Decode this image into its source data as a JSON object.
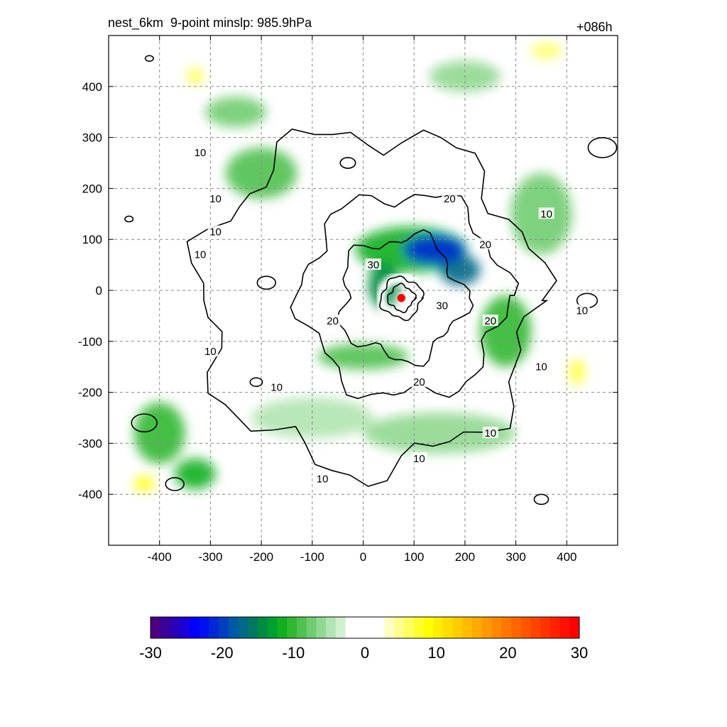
{
  "title_left": "nest_6km  9-point minslp: 985.9hPa",
  "title_right": "+086h",
  "colors": {
    "contour_line": "#000000",
    "center_marker": "#ff0000",
    "grid": "#888888"
  },
  "chart_data": {
    "type": "heatmap",
    "title": "nest_6km  9-point minslp: 985.9hPa",
    "subtitle": "+086h",
    "x_ticks": [
      "-400",
      "-300",
      "-200",
      "-100",
      "0",
      "100",
      "200",
      "300",
      "400"
    ],
    "y_ticks": [
      "400",
      "300",
      "200",
      "100",
      "0",
      "-100",
      "-200",
      "-300",
      "-400"
    ],
    "xlim": [
      -500,
      500
    ],
    "ylim": [
      -500,
      500
    ],
    "grid": true,
    "colorbar": {
      "min": -30,
      "max": 30,
      "tick_labels": [
        "-30",
        "-20",
        "-10",
        "0",
        "10",
        "20",
        "30"
      ],
      "colors": [
        "#4b0082",
        "#3a009a",
        "#2a00b8",
        "#1a00d6",
        "#0000ff",
        "#0010f0",
        "#0028d8",
        "#0040c0",
        "#0058a8",
        "#006888",
        "#007860",
        "#008c40",
        "#00a030",
        "#10b020",
        "#30b830",
        "#50c050",
        "#70cc70",
        "#90d890",
        "#b0e4b0",
        "#d0f0d0",
        "#ffffff",
        "#ffffff",
        "#ffffff",
        "#ffffff",
        "#ffffc0",
        "#ffff90",
        "#ffff60",
        "#ffff30",
        "#ffff00",
        "#ffee00",
        "#ffdd00",
        "#ffcc00",
        "#ffbb00",
        "#ffaa00",
        "#ff9900",
        "#ff8800",
        "#ff7700",
        "#ff6600",
        "#ff5500",
        "#ff4400",
        "#ff3300",
        "#ff2200",
        "#ff1100",
        "#ff0000"
      ]
    },
    "field_features": [
      {
        "x": 140,
        "y": 80,
        "rx": 60,
        "ry": 28,
        "value": -22
      },
      {
        "x": 190,
        "y": 40,
        "rx": 40,
        "ry": 30,
        "value": -18
      },
      {
        "x": 40,
        "y": 10,
        "rx": 30,
        "ry": 45,
        "value": -14
      },
      {
        "x": 95,
        "y": 80,
        "rx": 110,
        "ry": 45,
        "value": -12
      },
      {
        "x": 280,
        "y": -80,
        "rx": 50,
        "ry": 70,
        "value": -10
      },
      {
        "x": -200,
        "y": 230,
        "rx": 70,
        "ry": 50,
        "value": -9
      },
      {
        "x": -250,
        "y": 350,
        "rx": 60,
        "ry": 30,
        "value": -8
      },
      {
        "x": 0,
        "y": -130,
        "rx": 90,
        "ry": 25,
        "value": -9
      },
      {
        "x": -400,
        "y": -280,
        "rx": 50,
        "ry": 60,
        "value": -10
      },
      {
        "x": -330,
        "y": -360,
        "rx": 40,
        "ry": 30,
        "value": -12
      },
      {
        "x": 350,
        "y": 150,
        "rx": 60,
        "ry": 80,
        "value": -7
      },
      {
        "x": -100,
        "y": -250,
        "rx": 120,
        "ry": 40,
        "value": -5
      },
      {
        "x": 150,
        "y": -280,
        "rx": 150,
        "ry": 40,
        "value": -6
      },
      {
        "x": 200,
        "y": 420,
        "rx": 70,
        "ry": 30,
        "value": -6
      },
      {
        "x": -430,
        "y": -380,
        "rx": 20,
        "ry": 15,
        "value": 9
      },
      {
        "x": 420,
        "y": -160,
        "rx": 15,
        "ry": 25,
        "value": 8
      },
      {
        "x": -330,
        "y": 420,
        "rx": 15,
        "ry": 15,
        "value": 7
      },
      {
        "x": 360,
        "y": 470,
        "rx": 30,
        "ry": 15,
        "value": 6
      },
      {
        "x": 75,
        "y": -15,
        "rx": 8,
        "ry": 8,
        "value": 30
      }
    ],
    "contour_labels": [
      "10",
      "10",
      "10",
      "10",
      "10",
      "10",
      "10",
      "10",
      "10",
      "10",
      "10",
      "10",
      "20",
      "20",
      "20",
      "20",
      "20",
      "30",
      "30"
    ]
  }
}
